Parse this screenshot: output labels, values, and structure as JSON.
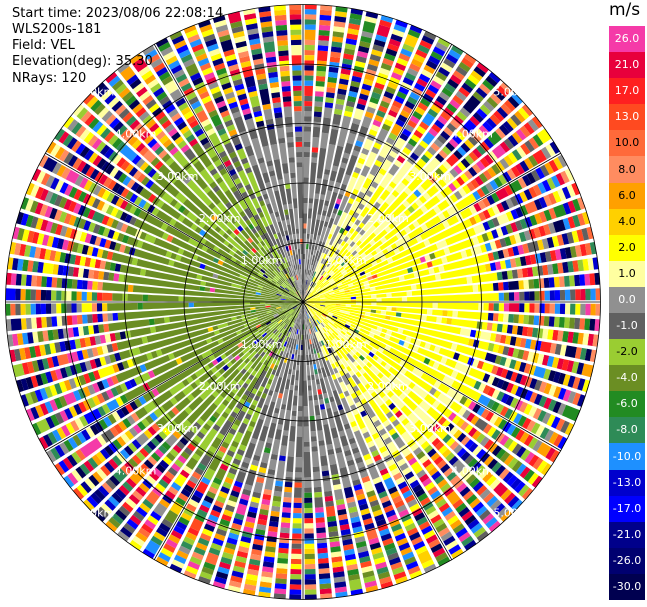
{
  "header": {
    "start_time": "Start time: 2023/08/06 22:08:14",
    "instrument": "WLS200s-181",
    "field": "Field: VEL",
    "elevation": "Elevation(deg): 35.30",
    "nrays": "NRays: 120"
  },
  "chart_data": {
    "type": "ppi",
    "field": "VEL",
    "units": "m/s",
    "elevation_deg": 35.3,
    "nrays": 120,
    "max_range_km": 7.0,
    "range_ring_labels_km": [
      "1.00km",
      "2.00km",
      "3.00km",
      "4.00km",
      "5.00km"
    ],
    "spokes_deg": [
      0,
      30,
      60,
      90,
      120,
      150,
      180,
      210,
      240,
      270,
      300,
      330
    ],
    "noise_beyond_km": 4.2,
    "colorbar": {
      "labels": [
        "26.0",
        "21.0",
        "17.0",
        "13.0",
        "10.0",
        "8.0",
        "6.0",
        "4.0",
        "2.0",
        "1.0",
        "0.0",
        "-1.0",
        "-2.0",
        "-4.0",
        "-6.0",
        "-8.0",
        "-10.0",
        "-13.0",
        "-17.0",
        "-21.0",
        "-26.0",
        "-30.0"
      ],
      "colors": [
        "#f53aa8",
        "#e8003c",
        "#ff2020",
        "#ff4a20",
        "#ff6a3a",
        "#ff8c60",
        "#ffa000",
        "#ffd000",
        "#ffff00",
        "#ffffa0",
        "#909090",
        "#606060",
        "#9acd32",
        "#6b8e23",
        "#228b22",
        "#2e8b57",
        "#1e90ff",
        "#0000cd",
        "#0000ff",
        "#00008b",
        "#000070",
        "#000050"
      ]
    },
    "structure": {
      "positive_sector_deg": [
        15,
        165
      ],
      "negative_sector_deg": [
        195,
        345
      ]
    }
  }
}
